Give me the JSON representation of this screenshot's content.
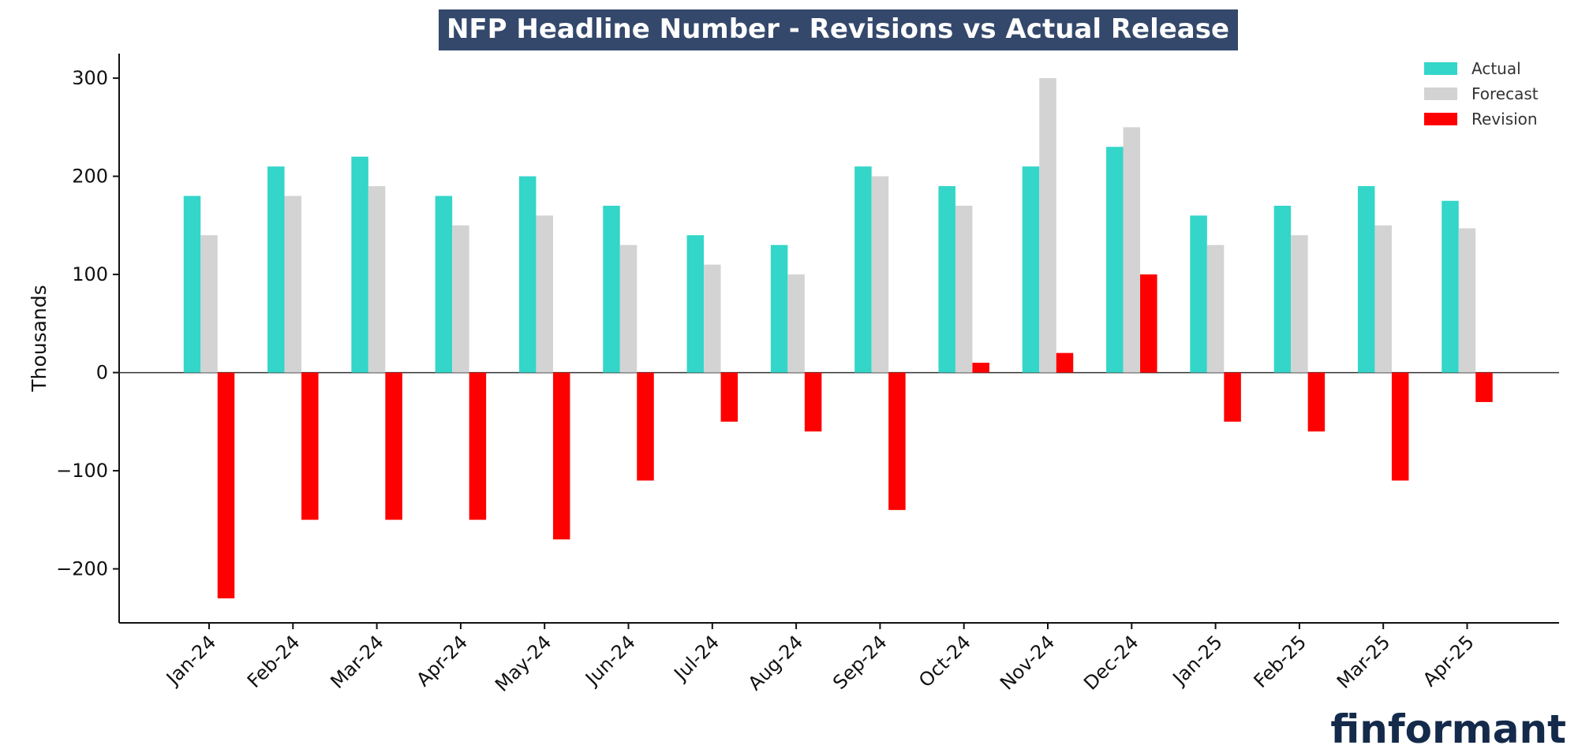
{
  "chart_data": {
    "type": "bar",
    "title": "NFP Headline Number - Revisions vs Actual Release",
    "ylabel": "Thousands",
    "xlabel": "",
    "ylim": [
      -255,
      325
    ],
    "yticks": [
      -200,
      -100,
      0,
      100,
      200,
      300
    ],
    "grid": false,
    "legend_position": "top-right",
    "categories": [
      "Jan-24",
      "Feb-24",
      "Mar-24",
      "Apr-24",
      "May-24",
      "Jun-24",
      "Jul-24",
      "Aug-24",
      "Sep-24",
      "Oct-24",
      "Nov-24",
      "Dec-24",
      "Jan-25",
      "Feb-25",
      "Mar-25",
      "Apr-25"
    ],
    "series": [
      {
        "name": "Actual",
        "color": "#33d6c9",
        "values": [
          180,
          210,
          220,
          180,
          200,
          170,
          140,
          130,
          210,
          190,
          210,
          230,
          160,
          170,
          190,
          175
        ]
      },
      {
        "name": "Forecast",
        "color": "#d3d3d3",
        "values": [
          140,
          180,
          190,
          150,
          160,
          130,
          110,
          100,
          200,
          170,
          300,
          250,
          130,
          140,
          150,
          147
        ]
      },
      {
        "name": "Revision",
        "color": "#ff0000",
        "values": [
          -230,
          -150,
          -150,
          -150,
          -170,
          -110,
          -50,
          -60,
          -140,
          10,
          20,
          100,
          -50,
          -60,
          -110,
          -30
        ]
      }
    ]
  },
  "brand": {
    "logo_text": "finformant",
    "title_bg_color": "#34486b",
    "logo_color": "#142a4b",
    "logo_accent_color": "#2ec4b6"
  }
}
